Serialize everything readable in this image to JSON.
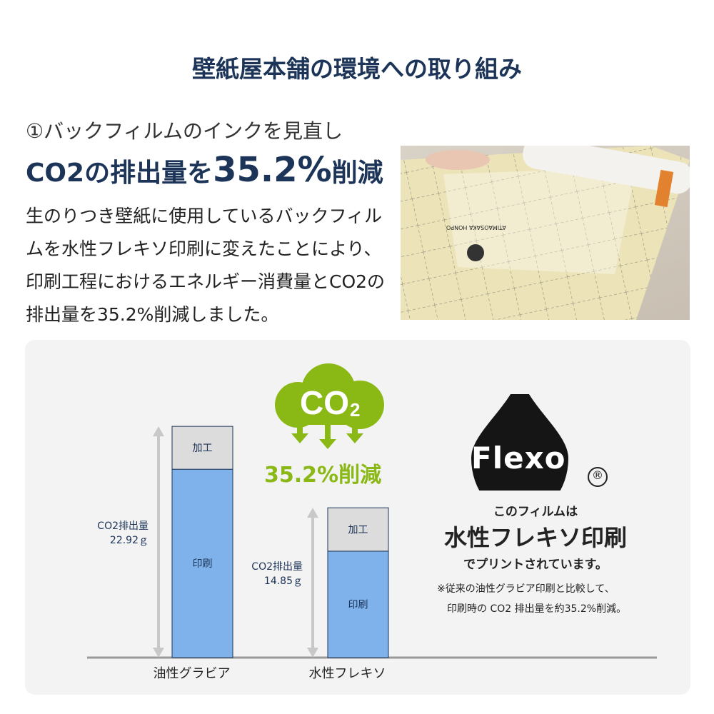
{
  "title": "壁紙屋本舗の環境への取り組み",
  "subtitle": "①バックフィルムのインクを見直し",
  "headline": {
    "pre": "CO2の排出量を",
    "num": "35.2%",
    "post": "削減"
  },
  "body": "生のりつき壁紙に使用しているバックフィルムを水性フレキソ印刷に変えたことにより、印刷工程におけるエネルギー消費量とCO2の排出量を35.2%削減しました。",
  "photo": {
    "sheet_text": "ATIMAOSAKA HONPO"
  },
  "cloud": {
    "label": "CO",
    "sub": "2",
    "reduction": "35.2%削減",
    "color": "#8ab814"
  },
  "flexo": {
    "logo": "Flexo",
    "mark": "®",
    "line1": "このフィルムは",
    "line2": "水性フレキソ印刷",
    "line3": "でプリントされています。",
    "note1": "※従来の油性グラビア印刷と比較して、",
    "note2": "印刷時の CO2 排出量を約35.2%削減。"
  },
  "chart_data": {
    "type": "bar",
    "stacked": true,
    "categories": [
      "油性グラビア",
      "水性フレキソ"
    ],
    "series": [
      {
        "name": "印刷",
        "values": [
          18.67,
          10.55
        ],
        "color": "#7fb2ea"
      },
      {
        "name": "加工",
        "values": [
          4.25,
          4.3
        ],
        "color": "#dcdcdc"
      }
    ],
    "totals": [
      22.92,
      14.85
    ],
    "total_labels": [
      [
        "CO2排出量",
        "22.92ｇ"
      ],
      [
        "CO2排出量",
        "14.85ｇ"
      ]
    ]
  }
}
